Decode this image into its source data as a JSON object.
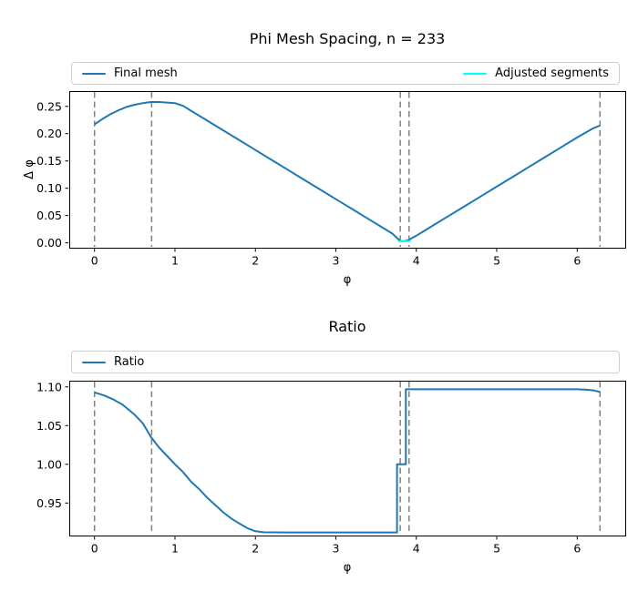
{
  "colors": {
    "final_mesh_line": "#1f77b4",
    "adjusted_segments_line": "#00ffff",
    "ratio_line": "#1f77b4",
    "boundary_vline": "#808080",
    "spine": "#000000",
    "legend_border": "#cfcfcf",
    "background": "#ffffff"
  },
  "chart_data": [
    {
      "type": "line",
      "title": "Phi Mesh Spacing, n = 233",
      "xlabel": "φ",
      "ylabel": "Δ φ",
      "xlim": [
        -0.314,
        6.597
      ],
      "ylim": [
        -0.009,
        0.278
      ],
      "xticks": [
        0,
        1,
        2,
        3,
        4,
        5,
        6
      ],
      "xtick_labels": [
        "0",
        "1",
        "2",
        "3",
        "4",
        "5",
        "6"
      ],
      "yticks": [
        0.0,
        0.05,
        0.1,
        0.15,
        0.2,
        0.25
      ],
      "ytick_labels": [
        "0.00",
        "0.05",
        "0.10",
        "0.15",
        "0.20",
        "0.25"
      ],
      "grid": false,
      "legend_position": "above",
      "vlines": [
        0,
        0.71,
        3.8,
        3.91,
        6.283
      ],
      "vline_style": "dashed",
      "vline_color": "#808080",
      "series": [
        {
          "name": "Final mesh",
          "color": "#1f77b4",
          "x": [
            0,
            0.1,
            0.2,
            0.3,
            0.4,
            0.5,
            0.6,
            0.7,
            0.8,
            0.9,
            1.0,
            1.1,
            1.2,
            1.4,
            1.6,
            1.8,
            2.0,
            2.2,
            2.4,
            2.6,
            2.8,
            3.0,
            3.2,
            3.4,
            3.6,
            3.7,
            3.78,
            3.8,
            3.85,
            3.9,
            4.0,
            4.2,
            4.4,
            4.6,
            4.8,
            5.0,
            5.2,
            5.4,
            5.6,
            5.8,
            6.0,
            6.2,
            6.283
          ],
          "y": [
            0.217,
            0.227,
            0.236,
            0.243,
            0.249,
            0.253,
            0.256,
            0.258,
            0.258,
            0.257,
            0.256,
            0.251,
            0.242,
            0.224,
            0.206,
            0.188,
            0.17,
            0.152,
            0.134,
            0.116,
            0.098,
            0.08,
            0.062,
            0.044,
            0.026,
            0.017,
            0.006,
            0.003,
            0.003,
            0.005,
            0.013,
            0.031,
            0.049,
            0.067,
            0.085,
            0.103,
            0.121,
            0.139,
            0.157,
            0.175,
            0.193,
            0.21,
            0.215
          ]
        },
        {
          "name": "Adjusted segments",
          "color": "#00ffff",
          "x": [
            3.77,
            3.93
          ],
          "y": [
            0.003,
            0.003
          ]
        }
      ]
    },
    {
      "type": "line",
      "title": "Ratio",
      "xlabel": "φ",
      "ylabel": "",
      "xlim": [
        -0.314,
        6.597
      ],
      "ylim": [
        0.908,
        1.108
      ],
      "xticks": [
        0,
        1,
        2,
        3,
        4,
        5,
        6
      ],
      "xtick_labels": [
        "0",
        "1",
        "2",
        "3",
        "4",
        "5",
        "6"
      ],
      "yticks": [
        0.95,
        1.0,
        1.05,
        1.1
      ],
      "ytick_labels": [
        "0.95",
        "1.00",
        "1.05",
        "1.10"
      ],
      "grid": false,
      "legend_position": "above",
      "vlines": [
        0,
        0.71,
        3.8,
        3.91,
        6.283
      ],
      "vline_style": "dashed",
      "vline_color": "#808080",
      "series": [
        {
          "name": "Ratio",
          "color": "#1f77b4",
          "x": [
            0,
            0.12,
            0.23,
            0.35,
            0.5,
            0.6,
            0.7,
            0.8,
            0.9,
            1.0,
            1.1,
            1.2,
            1.3,
            1.4,
            1.5,
            1.6,
            1.7,
            1.8,
            1.9,
            2.0,
            2.1,
            2.4,
            2.8,
            3.2,
            3.6,
            3.76,
            3.76,
            3.87,
            3.87,
            3.92,
            4.2,
            4.6,
            5.0,
            5.4,
            5.8,
            6.0,
            6.1,
            6.2,
            6.283
          ],
          "y": [
            1.093,
            1.089,
            1.084,
            1.077,
            1.064,
            1.053,
            1.0355,
            1.022,
            1.011,
            1.0,
            0.99,
            0.9775,
            0.968,
            0.957,
            0.9475,
            0.938,
            0.93,
            0.9235,
            0.9175,
            0.9135,
            0.9122,
            0.912,
            0.912,
            0.912,
            0.912,
            0.912,
            1.0,
            1.0,
            1.097,
            1.097,
            1.097,
            1.097,
            1.097,
            1.097,
            1.097,
            1.097,
            1.0965,
            1.0955,
            1.0935
          ]
        }
      ]
    }
  ]
}
